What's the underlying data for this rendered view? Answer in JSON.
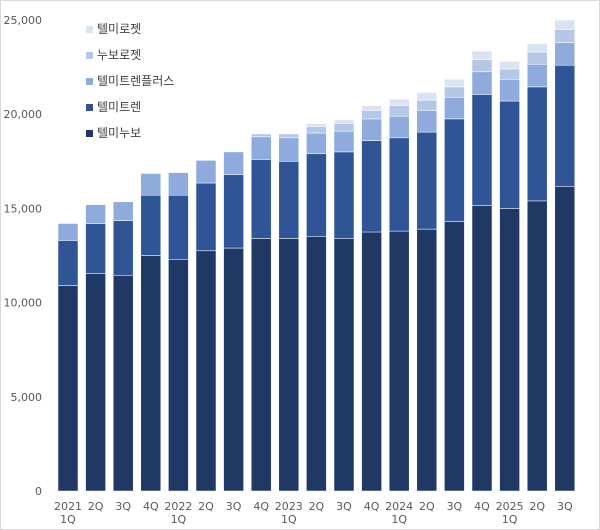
{
  "chart_data": {
    "type": "bar",
    "stacked": true,
    "categories": [
      [
        "2021",
        "1Q"
      ],
      [
        "2Q"
      ],
      [
        "3Q"
      ],
      [
        "4Q"
      ],
      [
        "2022",
        "1Q"
      ],
      [
        "2Q"
      ],
      [
        "3Q"
      ],
      [
        "4Q"
      ],
      [
        "2023",
        "1Q"
      ],
      [
        "2Q"
      ],
      [
        "3Q"
      ],
      [
        "4Q"
      ],
      [
        "2024",
        "1Q"
      ],
      [
        "2Q"
      ],
      [
        "3Q"
      ],
      [
        "4Q"
      ],
      [
        "2025",
        "1Q"
      ],
      [
        "2Q"
      ],
      [
        "3Q"
      ]
    ],
    "series": [
      {
        "name": "텔미누보",
        "color": "#203864",
        "values": [
          10900,
          11550,
          11450,
          12500,
          12300,
          12750,
          12900,
          13400,
          13400,
          13500,
          13400,
          13750,
          13800,
          13900,
          14300,
          15150,
          15000,
          15400,
          16150
        ]
      },
      {
        "name": "텔미트렌",
        "color": "#2f5597",
        "values": [
          2400,
          2650,
          2900,
          3200,
          3400,
          3600,
          3900,
          4200,
          4100,
          4400,
          4600,
          4850,
          4950,
          5150,
          5450,
          5900,
          5700,
          6050,
          6450
        ]
      },
      {
        "name": "텔미트렌플러스",
        "color": "#8faadc",
        "values": [
          900,
          1000,
          1000,
          1150,
          1200,
          1200,
          1200,
          1200,
          1250,
          1100,
          1100,
          1150,
          1150,
          1150,
          1150,
          1200,
          1150,
          1200,
          1200
        ]
      },
      {
        "name": "누보로젯",
        "color": "#b4c7e7",
        "values": [
          0,
          0,
          0,
          0,
          0,
          0,
          0,
          150,
          200,
          350,
          400,
          450,
          550,
          550,
          550,
          650,
          550,
          650,
          700
        ]
      },
      {
        "name": "텔미로젯",
        "color": "#dae3f3",
        "values": [
          0,
          0,
          0,
          0,
          0,
          0,
          0,
          0,
          0,
          150,
          200,
          250,
          350,
          400,
          400,
          450,
          400,
          450,
          500
        ]
      }
    ],
    "ylim": [
      0,
      25000
    ],
    "yticks": [
      "0",
      "5,000",
      "10,000",
      "15,000",
      "20,000",
      "25,000"
    ],
    "grid": false,
    "legend_position": "top-left",
    "legend_order": [
      "텔미로젯",
      "누보로젯",
      "텔미트렌플러스",
      "텔미트렌",
      "텔미누보"
    ],
    "title": "",
    "xlabel": "",
    "ylabel": ""
  }
}
